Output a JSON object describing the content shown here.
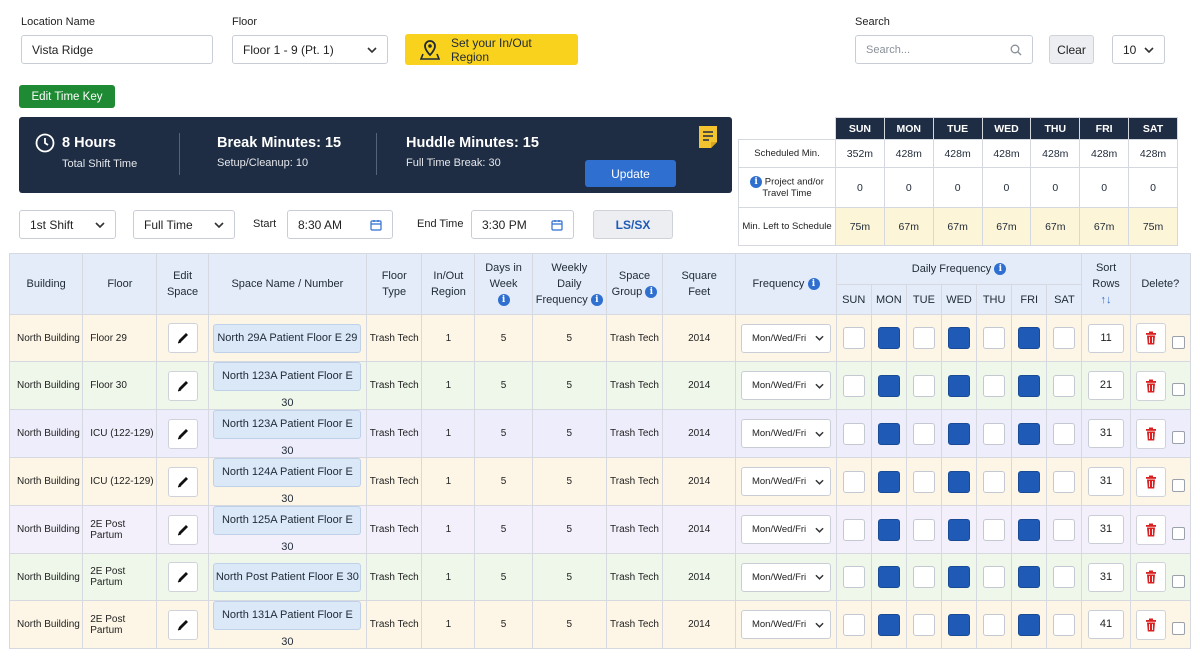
{
  "location": {
    "label": "Location Name",
    "value": "Vista Ridge"
  },
  "floor": {
    "label": "Floor",
    "value": "Floor 1 - 9 (Pt. 1)"
  },
  "region_button": "Set your In/Out Region",
  "search": {
    "label": "Search",
    "placeholder": "Search..."
  },
  "clear_label": "Clear",
  "page_size": "10",
  "edit_time_key": "Edit Time Key",
  "banner": {
    "hours": "8 Hours",
    "hours_sub": "Total Shift Time",
    "break": "Break Minutes: 15",
    "setup": "Setup/Cleanup: 10",
    "huddle": "Huddle Minutes: 15",
    "fulltime_break": "Full Time Break: 30",
    "update": "Update"
  },
  "shift_select": "1st Shift",
  "type_select": "Full Time",
  "start": {
    "label": "Start",
    "value": "8:30 AM"
  },
  "end": {
    "label": "End Time",
    "value": "3:30 PM"
  },
  "lssx": "LS/SX",
  "schedule": {
    "days": [
      "SUN",
      "MON",
      "TUE",
      "WED",
      "THU",
      "FRI",
      "SAT"
    ],
    "rows": [
      {
        "label": "Scheduled Min.",
        "values": [
          "352m",
          "428m",
          "428m",
          "428m",
          "428m",
          "428m",
          "428m"
        ]
      },
      {
        "label": "Project and/or Travel Time",
        "values": [
          "0",
          "0",
          "0",
          "0",
          "0",
          "0",
          "0"
        ]
      },
      {
        "label": "Min. Left to Schedule",
        "values": [
          "75m",
          "67m",
          "67m",
          "67m",
          "67m",
          "67m",
          "75m"
        ]
      }
    ]
  },
  "table": {
    "headers": {
      "building": "Building",
      "floor": "Floor",
      "edit_space": [
        "Edit",
        "Space"
      ],
      "space_name": "Space Name / Number",
      "floor_type": [
        "Floor",
        "Type"
      ],
      "inout": [
        "In/Out",
        "Region"
      ],
      "days_in_week": [
        "Days in",
        "Week"
      ],
      "weekly_daily": [
        "Weekly",
        "Daily",
        "Frequency"
      ],
      "space_group": [
        "Space",
        "Group"
      ],
      "square_feet": [
        "Square",
        "Feet"
      ],
      "frequency": "Frequency",
      "daily_frequency": "Daily Frequency",
      "days": [
        "SUN",
        "MON",
        "TUE",
        "WED",
        "THU",
        "FRI",
        "SAT"
      ],
      "sort_rows": [
        "Sort",
        "Rows"
      ],
      "delete": "Delete?"
    },
    "rows": [
      {
        "building": "North Building",
        "floor": "Floor 29",
        "space": "North 29A Patient Floor E 29",
        "floor_type": "Trash Tech",
        "inout": "1",
        "days": "5",
        "weekly": "5",
        "group": "Trash Tech",
        "sqft": "2014",
        "freq": "Mon/Wed/Fri",
        "sort": "11"
      },
      {
        "building": "North Building",
        "floor": "Floor 30",
        "space": "North 123A Patient Floor E 30",
        "floor_type": "Trash Tech",
        "inout": "1",
        "days": "5",
        "weekly": "5",
        "group": "Trash Tech",
        "sqft": "2014",
        "freq": "Mon/Wed/Fri",
        "sort": "21"
      },
      {
        "building": "North Building",
        "floor": "ICU (122-129)",
        "space": "North 123A Patient Floor E 30",
        "floor_type": "Trash Tech",
        "inout": "1",
        "days": "5",
        "weekly": "5",
        "group": "Trash Tech",
        "sqft": "2014",
        "freq": "Mon/Wed/Fri",
        "sort": "31"
      },
      {
        "building": "North Building",
        "floor": "ICU (122-129)",
        "space": "North 124A Patient Floor E 30",
        "floor_type": "Trash Tech",
        "inout": "1",
        "days": "5",
        "weekly": "5",
        "group": "Trash Tech",
        "sqft": "2014",
        "freq": "Mon/Wed/Fri",
        "sort": "31"
      },
      {
        "building": "North Building",
        "floor": "2E Post Partum",
        "space": "North 125A Patient Floor E 30",
        "floor_type": "Trash Tech",
        "inout": "1",
        "days": "5",
        "weekly": "5",
        "group": "Trash Tech",
        "sqft": "2014",
        "freq": "Mon/Wed/Fri",
        "sort": "31"
      },
      {
        "building": "North Building",
        "floor": "2E Post Partum",
        "space": "North Post Patient Floor E 30",
        "floor_type": "Trash Tech",
        "inout": "1",
        "days": "5",
        "weekly": "5",
        "group": "Trash Tech",
        "sqft": "2014",
        "freq": "Mon/Wed/Fri",
        "sort": "31"
      },
      {
        "building": "North Building",
        "floor": "2E Post Partum",
        "space": "North 131A Patient Floor E 30",
        "floor_type": "Trash Tech",
        "inout": "1",
        "days": "5",
        "weekly": "5",
        "group": "Trash Tech",
        "sqft": "2014",
        "freq": "Mon/Wed/Fri",
        "sort": "41"
      }
    ],
    "day_pattern": [
      false,
      true,
      false,
      true,
      false,
      true,
      false
    ]
  }
}
